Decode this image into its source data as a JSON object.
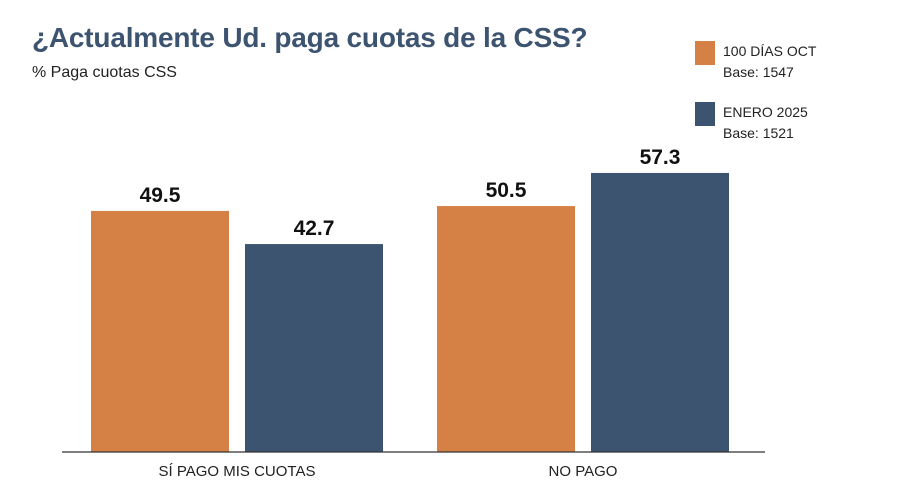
{
  "chart_data": {
    "type": "bar",
    "title": "¿Actualmente Ud. paga cuotas de la CSS?",
    "subtitle": "% Paga cuotas CSS",
    "categories": [
      "SÍ PAGO MIS CUOTAS",
      "NO PAGO"
    ],
    "series": [
      {
        "name": "100 DÍAS OCT",
        "base": "Base: 1547",
        "color": "#d58045",
        "values": [
          49.5,
          50.5
        ],
        "labels": [
          "49.5",
          "50.5"
        ]
      },
      {
        "name": "ENERO 2025",
        "base": "Base: 1521",
        "color": "#3d5470",
        "values": [
          42.7,
          57.3
        ],
        "labels": [
          "42.7",
          "57.3"
        ]
      }
    ],
    "xlabel": "",
    "ylabel": "",
    "ylim": [
      0,
      100
    ],
    "grid": false,
    "legend_position": "top-right"
  }
}
